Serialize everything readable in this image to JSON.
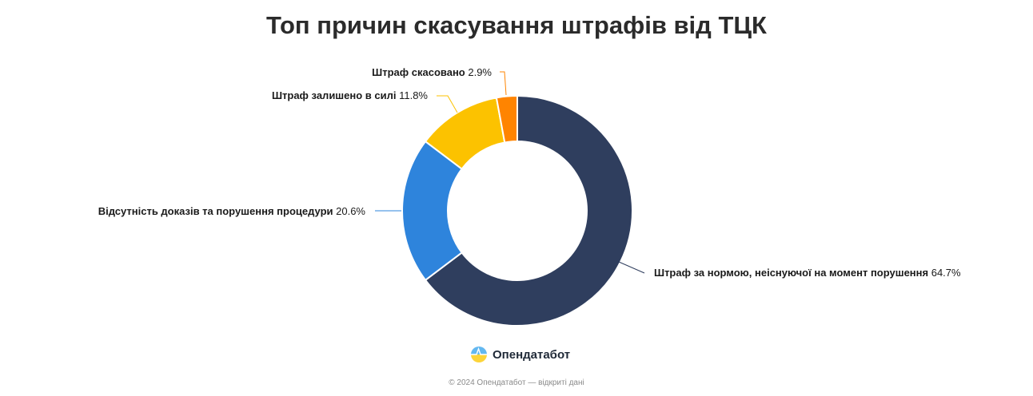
{
  "chart_data": {
    "type": "pie",
    "title": "Топ причин скасування штрафів від ТЦК",
    "series": [
      {
        "name": "Штраф за нормою, неіснуючої на момент порушення",
        "value": 64.7,
        "value_label": "64.7%",
        "color": "#2f3e5e"
      },
      {
        "name": "Відсутність доказів та порушення процедури",
        "value": 20.6,
        "value_label": "20.6%",
        "color": "#2e84dc"
      },
      {
        "name": "Штраф залишено в силі",
        "value": 11.8,
        "value_label": "11.8%",
        "color": "#fcc200"
      },
      {
        "name": "Штраф скасовано",
        "value": 2.9,
        "value_label": "2.9%",
        "color": "#ff8400"
      }
    ]
  },
  "brand": {
    "name": "Опендатабот",
    "logo_icon": "opendatabot-logo-icon"
  },
  "footer": {
    "text": "© 2024 Опендатабот — відкриті дані"
  }
}
